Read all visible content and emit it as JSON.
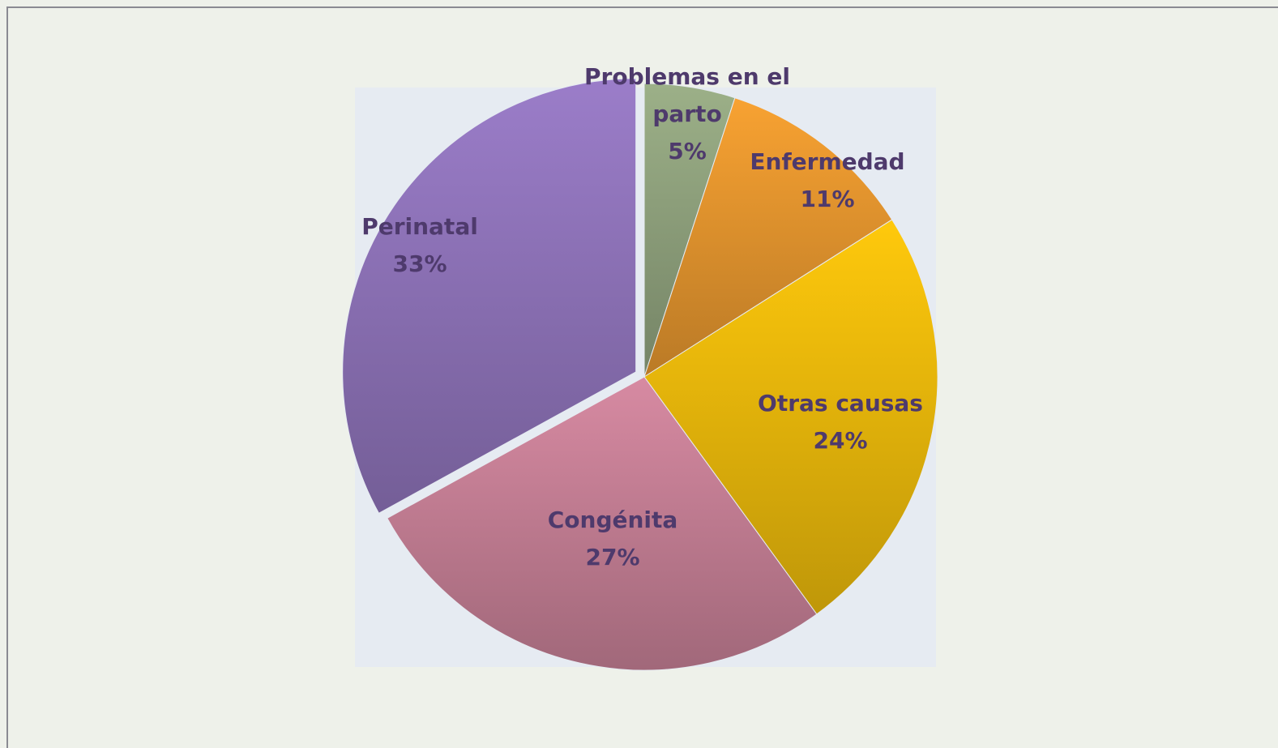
{
  "chart_data": {
    "type": "pie",
    "categories": [
      "Problemas en el parto",
      "Enfermedad",
      "Otras causas",
      "Congénita",
      "Perinatal"
    ],
    "values": [
      5,
      11,
      24,
      27,
      33
    ],
    "value_labels": [
      "5%",
      "11%",
      "24%",
      "27%",
      "33%"
    ],
    "colors": [
      "#9cb088",
      "#f8a232",
      "#ffc90c",
      "#d78aa2",
      "#9b7dc9"
    ],
    "exploded": [
      4
    ]
  }
}
